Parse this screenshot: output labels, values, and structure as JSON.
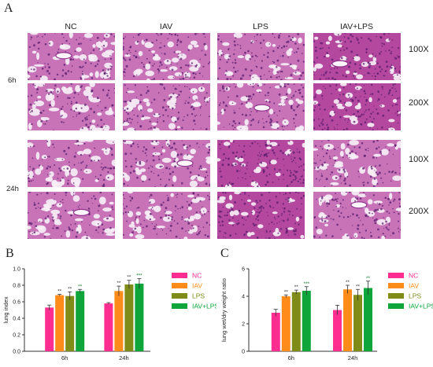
{
  "panel_a": {
    "letter": "A",
    "columns": [
      "NC",
      "IAV",
      "LPS",
      "IAV+LPS"
    ],
    "times": [
      "6h",
      "24h"
    ],
    "magnifications": [
      "100X",
      "200X",
      "100X",
      "200X"
    ]
  },
  "panel_b": {
    "letter": "B"
  },
  "panel_c": {
    "letter": "C"
  },
  "chart_data": [
    {
      "type": "bar",
      "ylabel": "lung index",
      "xlabel": "",
      "categories": [
        "6h",
        "24h"
      ],
      "ylim": [
        0,
        1.0
      ],
      "yticks": [
        0.0,
        0.2,
        0.4,
        0.6,
        0.8,
        1.0
      ],
      "series": [
        {
          "name": "NC",
          "color": "#ff2d8f",
          "values": [
            0.53,
            0.58
          ],
          "errors": [
            0.03,
            0.01
          ],
          "sig": [
            "",
            ""
          ]
        },
        {
          "name": "IAV",
          "color": "#ff8c1a",
          "values": [
            0.68,
            0.73
          ],
          "errors": [
            0.01,
            0.06
          ],
          "sig": [
            "**",
            "**"
          ]
        },
        {
          "name": "LPS",
          "color": "#7f8c17",
          "values": [
            0.67,
            0.81
          ],
          "errors": [
            0.05,
            0.05
          ],
          "sig": [
            "**",
            "**"
          ]
        },
        {
          "name": "IAV+LPS",
          "color": "#0ea63b",
          "values": [
            0.73,
            0.82
          ],
          "errors": [
            0.02,
            0.06
          ],
          "sig": [
            "**",
            "***"
          ]
        }
      ]
    },
    {
      "type": "bar",
      "ylabel": "lung wet/dry weight ratio",
      "xlabel": "",
      "categories": [
        "6h",
        "24h"
      ],
      "ylim": [
        0,
        6
      ],
      "yticks": [
        0,
        2,
        4,
        6
      ],
      "series": [
        {
          "name": "NC",
          "color": "#ff2d8f",
          "values": [
            2.8,
            3.0
          ],
          "errors": [
            0.25,
            0.35
          ],
          "sig": [
            "",
            ""
          ]
        },
        {
          "name": "IAV",
          "color": "#ff8c1a",
          "values": [
            4.0,
            4.5
          ],
          "errors": [
            0.1,
            0.3
          ],
          "sig": [
            "**",
            "**"
          ]
        },
        {
          "name": "LPS",
          "color": "#7f8c17",
          "values": [
            4.3,
            4.1
          ],
          "errors": [
            0.15,
            0.4
          ],
          "sig": [
            "**",
            "**"
          ]
        },
        {
          "name": "IAV+LPS",
          "color": "#0ea63b",
          "values": [
            4.4,
            4.6
          ],
          "errors": [
            0.3,
            0.5
          ],
          "sig": [
            "***",
            "**"
          ]
        }
      ]
    }
  ]
}
